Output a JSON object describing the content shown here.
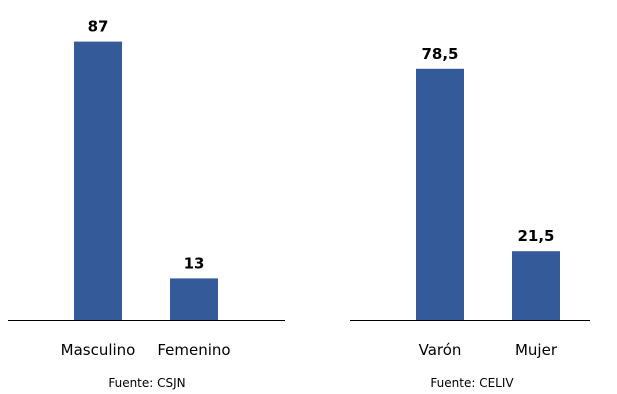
{
  "chart_data": [
    {
      "type": "bar",
      "categories": [
        "Masculino",
        "Femenino"
      ],
      "values": [
        87,
        13
      ],
      "value_labels": [
        "87",
        "13"
      ],
      "source": "Fuente: CSJN",
      "ylim": [
        0,
        100
      ],
      "grid": false,
      "bar_color": "#355a9a"
    },
    {
      "type": "bar",
      "categories": [
        "Varón",
        "Mujer"
      ],
      "values": [
        78.5,
        21.5
      ],
      "value_labels": [
        "78,5",
        "21,5"
      ],
      "source": "Fuente: CELIV",
      "ylim": [
        0,
        100
      ],
      "grid": false,
      "bar_color": "#355a9a"
    }
  ]
}
